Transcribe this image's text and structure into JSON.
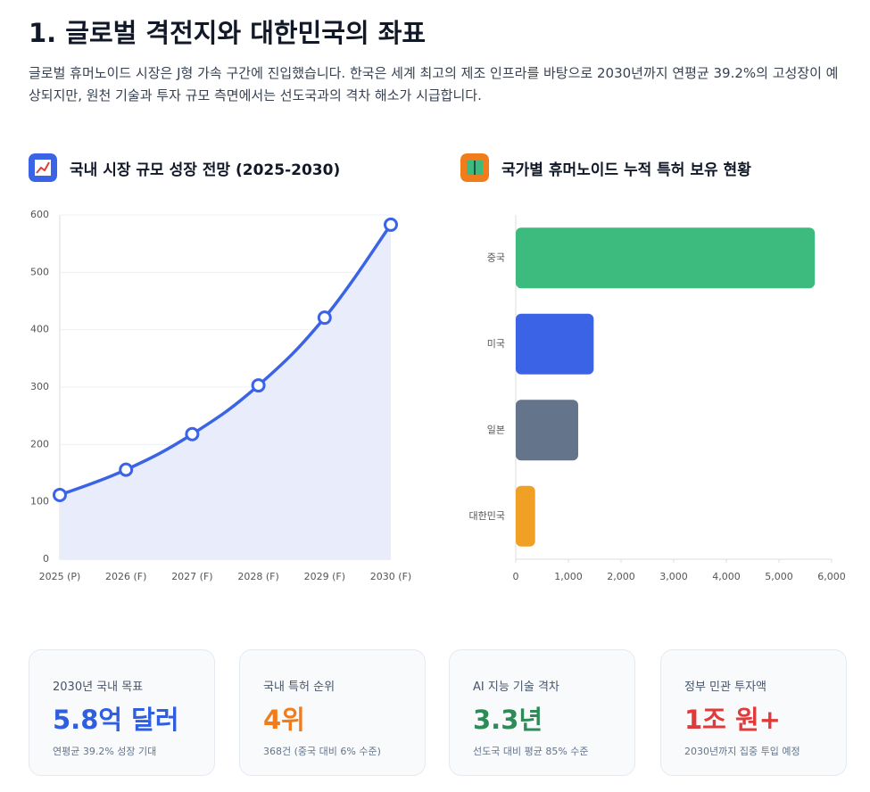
{
  "header": {
    "title": "1. 글로벌 격전지와 대한민국의 좌표",
    "description": "글로벌 휴머노이드 시장은 J형 가속 구간에 진입했습니다. 한국은 세계 최고의 제조 인프라를 바탕으로 2030년까지 연평균 39.2%의 고성장이 예상되지만, 원천 기술과 투자 규모 측면에서는 선도국과의 격차 해소가 시급합니다."
  },
  "chart_data": [
    {
      "type": "line",
      "title": "국내 시장 규모 성장 전망 (2025-2030)",
      "categories": [
        "2025 (P)",
        "2026 (F)",
        "2027 (F)",
        "2028 (F)",
        "2029 (F)",
        "2030 (F)"
      ],
      "values": [
        112,
        156,
        218,
        303,
        421,
        583
      ],
      "color": "#3b63e6",
      "area_color": "#e8ecfb",
      "ylim": [
        0,
        600
      ],
      "yticks": [
        0,
        100,
        200,
        300,
        400,
        500,
        600
      ],
      "grid": true
    },
    {
      "type": "bar",
      "orientation": "horizontal",
      "title": "국가별 휴머노이드 누적 특허 보유 현황",
      "categories": [
        "중국",
        "미국",
        "일본",
        "대한민국"
      ],
      "values": [
        5680,
        1480,
        1186,
        368
      ],
      "colors": [
        "#3dba7e",
        "#3b63e6",
        "#64748b",
        "#f0a024"
      ],
      "xlim": [
        0,
        6000
      ],
      "xticks": [
        0,
        {
          "value": 1000,
          "label": "1,000"
        },
        {
          "value": 2000,
          "label": "2,000"
        },
        {
          "value": 3000,
          "label": "3,000"
        },
        {
          "value": 4000,
          "label": "4,000"
        },
        {
          "value": 5000,
          "label": "5,000"
        },
        {
          "value": 6000,
          "label": "6,000"
        }
      ],
      "grid": false
    }
  ],
  "cards": [
    {
      "label": "2030년 국내 목표",
      "value": "5.8억 달러",
      "note": "연평균 39.2% 성장 기대",
      "color": "#2f5fe0"
    },
    {
      "label": "국내 특허 순위",
      "value": "4위",
      "note": "368건 (중국 대비 6% 수준)",
      "color": "#f07c1c"
    },
    {
      "label": "AI 지능 기술 격차",
      "value": "3.3년",
      "note": "선도국 대비 평균 85% 수준",
      "color": "#2e8b57"
    },
    {
      "label": "정부 민관 투자액",
      "value": "1조 원+",
      "note": "2030년까지 집중 투입 예정",
      "color": "#e03a3a"
    }
  ]
}
